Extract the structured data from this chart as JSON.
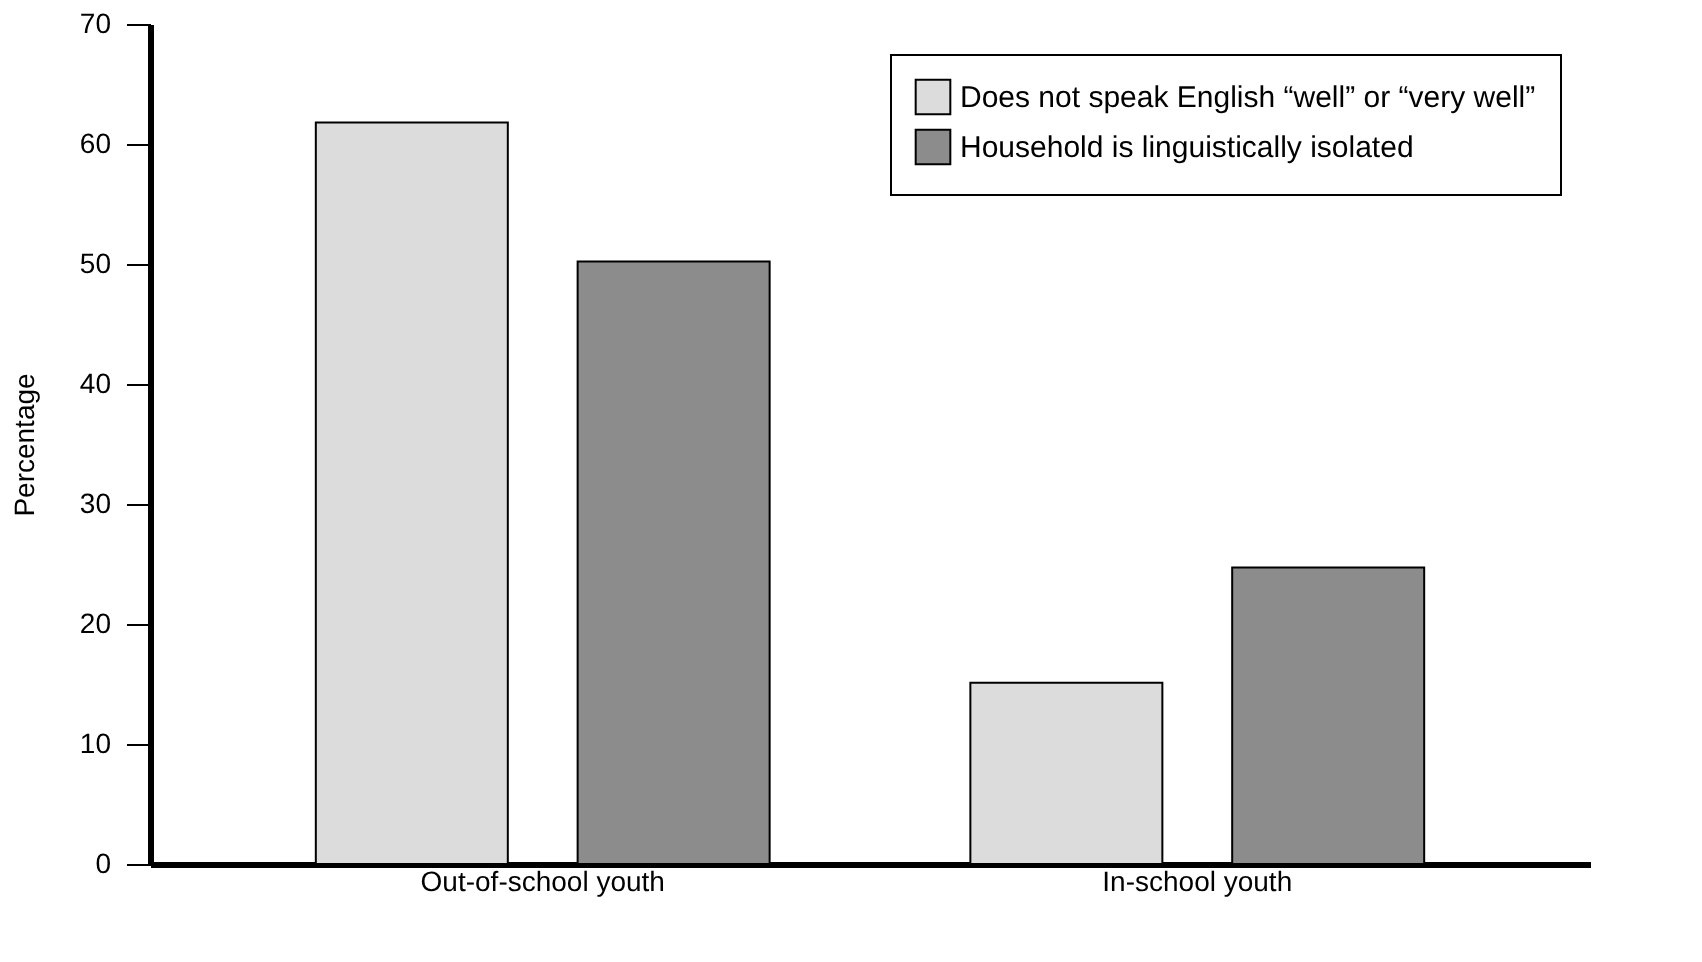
{
  "chart_data": {
    "type": "bar",
    "ylabel": "Percentage",
    "categories": [
      "Out-of-school youth",
      "In-school youth"
    ],
    "series": [
      {
        "name": "Does not speak English “well” or “very well”",
        "color": "#dcdcdc",
        "values": [
          61.8,
          15.1
        ]
      },
      {
        "name": "Household is linguistically isolated",
        "color": "#8c8c8c",
        "values": [
          50.2,
          24.7
        ]
      }
    ],
    "ylim": [
      0,
      70
    ],
    "yticks": [
      0,
      10,
      20,
      30,
      40,
      50,
      60,
      70
    ],
    "grid": false,
    "legend": "top right"
  }
}
